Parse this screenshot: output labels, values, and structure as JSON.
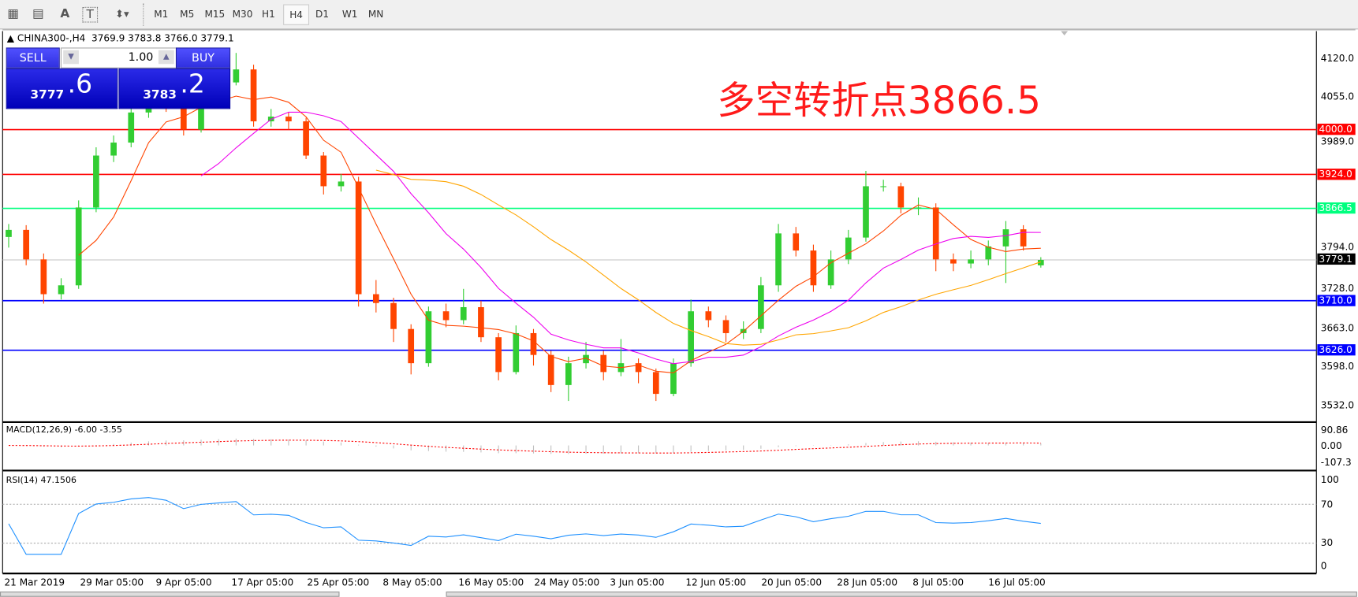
{
  "toolbar": {
    "tools": [
      {
        "icon": "grid-e-icon",
        "glyph": "▦"
      },
      {
        "icon": "grid-f-icon",
        "glyph": "▤"
      },
      {
        "icon": "text-icon",
        "glyph": "A"
      },
      {
        "icon": "text-label-icon",
        "glyph": "T"
      },
      {
        "icon": "arrows-icon",
        "glyph": "⬍▾"
      }
    ],
    "periods": [
      "M1",
      "M5",
      "M15",
      "M30",
      "H1",
      "H4",
      "D1",
      "W1",
      "MN"
    ],
    "selected_period": "H4"
  },
  "header": {
    "symbol": "CHINA300-,H4",
    "ohlc": "3769.9 3783.8 3766.0 3779.1"
  },
  "trade_panel": {
    "sell_label": "SELL",
    "buy_label": "BUY",
    "lot": "1.00",
    "sell_big": "3777",
    "sell_small": ".6",
    "buy_big": "3783",
    "buy_small": ".2"
  },
  "annotation": "多空转折点3866.5",
  "price_axis": {
    "ticks": [
      "4120.0",
      "4055.0",
      "3989.0",
      "3794.0",
      "3728.0",
      "3663.0",
      "3598.0",
      "3532.0"
    ],
    "tick_values": [
      4120,
      4055,
      3989,
      3794,
      3728,
      3663,
      3598,
      3532
    ]
  },
  "hlines": [
    {
      "label": "4000.0",
      "value": 4000,
      "color": "#ff0000"
    },
    {
      "label": "3924.0",
      "value": 3924,
      "color": "#ff0000"
    },
    {
      "label": "3866.5",
      "value": 3866.5,
      "color": "#00ff7f"
    },
    {
      "label": "3710.0",
      "value": 3710,
      "color": "#0000ff"
    },
    {
      "label": "3626.0",
      "value": 3626,
      "color": "#0000ff"
    }
  ],
  "current_price": {
    "label": "3779.1",
    "value": 3779.1,
    "color": "#000000"
  },
  "colors": {
    "bull": "#32cd32",
    "bear": "#ff4500",
    "ma_fast": "#ff4500",
    "ma_mid": "#ee00ee",
    "ma_slow": "#ffa500",
    "rsi": "#1e90ff",
    "macd_signal": "#ff0000",
    "macd_hist": "#c0c0c0"
  },
  "macd": {
    "label": "MACD(12,26,9) -6.00 -3.55",
    "ticks": [
      "90.86",
      "0.00",
      "-107.3"
    ]
  },
  "rsi": {
    "label": "RSI(14) 47.1506",
    "ticks": [
      "100",
      "70",
      "30",
      "0"
    ]
  },
  "dates": [
    "21 Mar 2019",
    "29 Mar 05:00",
    "9 Apr 05:00",
    "17 Apr 05:00",
    "25 Apr 05:00",
    "8 May 05:00",
    "16 May 05:00",
    "24 May 05:00",
    "3 Jun 05:00",
    "12 Jun 05:00",
    "20 Jun 05:00",
    "28 Jun 05:00",
    "8 Jul 05:00",
    "16 Jul 05:00"
  ],
  "chart_data": {
    "type": "candlestick",
    "symbol": "CHINA300-",
    "timeframe": "H4",
    "ylim": [
      3520,
      4160
    ],
    "candles": [
      [
        3818,
        3840,
        3800,
        3830
      ],
      [
        3830,
        3838,
        3770,
        3780
      ],
      [
        3780,
        3790,
        3705,
        3721
      ],
      [
        3721,
        3748,
        3712,
        3736
      ],
      [
        3736,
        3880,
        3730,
        3868
      ],
      [
        3868,
        3970,
        3860,
        3956
      ],
      [
        3956,
        3990,
        3945,
        3978
      ],
      [
        3978,
        4040,
        3970,
        4029
      ],
      [
        4029,
        4070,
        4020,
        4058
      ],
      [
        4058,
        4066,
        4030,
        4044
      ],
      [
        4044,
        4050,
        3990,
        4000
      ],
      [
        4000,
        4070,
        3995,
        4058
      ],
      [
        4058,
        4095,
        4050,
        4080
      ],
      [
        4080,
        4130,
        4075,
        4102
      ],
      [
        4102,
        4110,
        4005,
        4014
      ],
      [
        4014,
        4035,
        4005,
        4022
      ],
      [
        4022,
        4030,
        4000,
        4014
      ],
      [
        4014,
        4020,
        3950,
        3956
      ],
      [
        3956,
        3962,
        3890,
        3904
      ],
      [
        3904,
        3925,
        3895,
        3912
      ],
      [
        3912,
        3920,
        3700,
        3721
      ],
      [
        3721,
        3745,
        3690,
        3706
      ],
      [
        3706,
        3715,
        3640,
        3662
      ],
      [
        3662,
        3670,
        3585,
        3604
      ],
      [
        3604,
        3700,
        3598,
        3692
      ],
      [
        3692,
        3705,
        3665,
        3677
      ],
      [
        3677,
        3730,
        3670,
        3699
      ],
      [
        3699,
        3710,
        3640,
        3648
      ],
      [
        3648,
        3655,
        3575,
        3589
      ],
      [
        3589,
        3668,
        3585,
        3655
      ],
      [
        3655,
        3662,
        3600,
        3618
      ],
      [
        3618,
        3625,
        3555,
        3567
      ],
      [
        3567,
        3615,
        3540,
        3604
      ],
      [
        3604,
        3640,
        3595,
        3618
      ],
      [
        3618,
        3625,
        3575,
        3589
      ],
      [
        3589,
        3645,
        3582,
        3604
      ],
      [
        3604,
        3612,
        3570,
        3589
      ],
      [
        3589,
        3595,
        3540,
        3552
      ],
      [
        3552,
        3612,
        3548,
        3604
      ],
      [
        3604,
        3712,
        3598,
        3692
      ],
      [
        3692,
        3700,
        3665,
        3677
      ],
      [
        3677,
        3685,
        3640,
        3655
      ],
      [
        3655,
        3675,
        3645,
        3662
      ],
      [
        3662,
        3750,
        3655,
        3736
      ],
      [
        3736,
        3840,
        3725,
        3824
      ],
      [
        3824,
        3835,
        3785,
        3795
      ],
      [
        3795,
        3805,
        3725,
        3736
      ],
      [
        3736,
        3795,
        3730,
        3780
      ],
      [
        3780,
        3830,
        3772,
        3817
      ],
      [
        3817,
        3930,
        3810,
        3904
      ],
      [
        3904,
        3915,
        3895,
        3904
      ],
      [
        3904,
        3910,
        3858,
        3868
      ],
      [
        3868,
        3885,
        3855,
        3868
      ],
      [
        3868,
        3875,
        3760,
        3780
      ],
      [
        3780,
        3790,
        3760,
        3773
      ],
      [
        3773,
        3795,
        3765,
        3780
      ],
      [
        3780,
        3812,
        3770,
        3802
      ],
      [
        3802,
        3845,
        3740,
        3831
      ],
      [
        3831,
        3838,
        3795,
        3802
      ],
      [
        3769.9,
        3783.8,
        3766.0,
        3779.1
      ]
    ]
  }
}
